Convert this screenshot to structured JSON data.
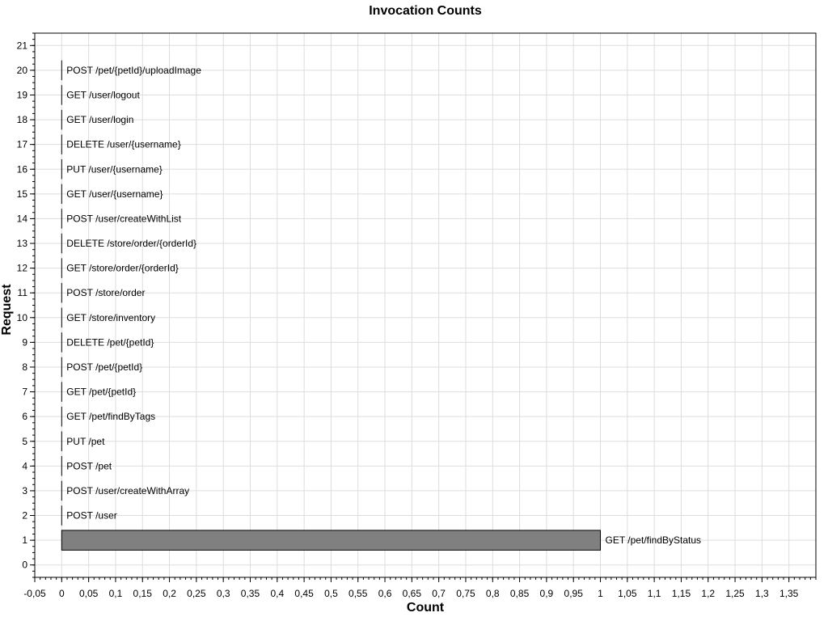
{
  "chart_data": {
    "type": "bar",
    "orientation": "horizontal",
    "title": "Invocation Counts",
    "xlabel": "Count",
    "ylabel": "Request",
    "xlim": [
      -0.05,
      1.4
    ],
    "ylim": [
      -0.5,
      21.5
    ],
    "x_ticks": [
      "-0,05",
      "0",
      "0,05",
      "0,1",
      "0,15",
      "0,2",
      "0,25",
      "0,3",
      "0,35",
      "0,4",
      "0,45",
      "0,5",
      "0,55",
      "0,6",
      "0,65",
      "0,7",
      "0,75",
      "0,8",
      "0,85",
      "0,9",
      "0,95",
      "1",
      "1,05",
      "1,1",
      "1,15",
      "1,2",
      "1,25",
      "1,3",
      "1,35"
    ],
    "y_ticks": [
      "0",
      "1",
      "2",
      "3",
      "4",
      "5",
      "6",
      "7",
      "8",
      "9",
      "10",
      "11",
      "12",
      "13",
      "14",
      "15",
      "16",
      "17",
      "18",
      "19",
      "20",
      "21"
    ],
    "grid": true,
    "bar_color": "#808080",
    "bars": [
      {
        "y": 1,
        "value": 1,
        "label": "GET /pet/findByStatus"
      },
      {
        "y": 2,
        "value": 0,
        "label": "POST /user"
      },
      {
        "y": 3,
        "value": 0,
        "label": "POST /user/createWithArray"
      },
      {
        "y": 4,
        "value": 0,
        "label": "POST /pet"
      },
      {
        "y": 5,
        "value": 0,
        "label": "PUT /pet"
      },
      {
        "y": 6,
        "value": 0,
        "label": "GET /pet/findByTags"
      },
      {
        "y": 7,
        "value": 0,
        "label": "GET /pet/{petId}"
      },
      {
        "y": 8,
        "value": 0,
        "label": "POST /pet/{petId}"
      },
      {
        "y": 9,
        "value": 0,
        "label": "DELETE /pet/{petId}"
      },
      {
        "y": 10,
        "value": 0,
        "label": "GET /store/inventory"
      },
      {
        "y": 11,
        "value": 0,
        "label": "POST /store/order"
      },
      {
        "y": 12,
        "value": 0,
        "label": "GET /store/order/{orderId}"
      },
      {
        "y": 13,
        "value": 0,
        "label": "DELETE /store/order/{orderId}"
      },
      {
        "y": 14,
        "value": 0,
        "label": "POST /user/createWithList"
      },
      {
        "y": 15,
        "value": 0,
        "label": "GET /user/{username}"
      },
      {
        "y": 16,
        "value": 0,
        "label": "PUT /user/{username}"
      },
      {
        "y": 17,
        "value": 0,
        "label": "DELETE /user/{username}"
      },
      {
        "y": 18,
        "value": 0,
        "label": "GET /user/login"
      },
      {
        "y": 19,
        "value": 0,
        "label": "GET /user/logout"
      },
      {
        "y": 20,
        "value": 0,
        "label": "POST /pet/{petId}/uploadImage"
      }
    ]
  }
}
